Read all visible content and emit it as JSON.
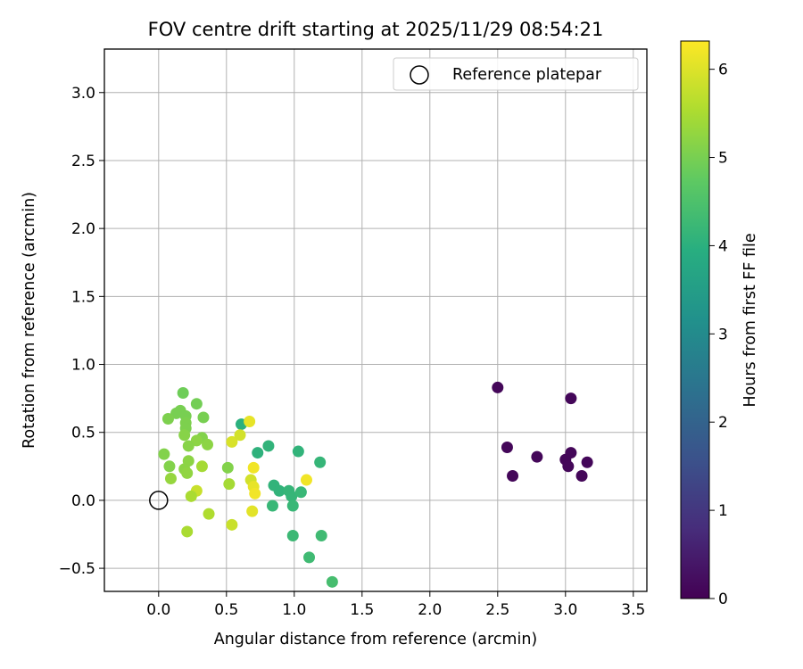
{
  "chart_data": {
    "type": "scatter",
    "title": "FOV centre drift starting at 2025/11/29 08:54:21",
    "xlabel": "Angular distance from reference (arcmin)",
    "ylabel": "Rotation from reference (arcmin)",
    "xlim": [
      -0.4,
      3.6
    ],
    "ylim": [
      -0.67,
      3.32
    ],
    "xticks": [
      0.0,
      0.5,
      1.0,
      1.5,
      2.0,
      2.5,
      3.0,
      3.5
    ],
    "xtick_labels": [
      "0.0",
      "0.5",
      "1.0",
      "1.5",
      "2.0",
      "2.5",
      "3.0",
      "3.5"
    ],
    "yticks": [
      -0.5,
      0.0,
      0.5,
      1.0,
      1.5,
      2.0,
      2.5,
      3.0
    ],
    "ytick_labels": [
      "−0.5",
      "0.0",
      "0.5",
      "1.0",
      "1.5",
      "2.0",
      "2.5",
      "3.0"
    ],
    "grid": true,
    "legend": {
      "position": "top-right",
      "label": "Reference platepar"
    },
    "reference_point": {
      "x": 0.0,
      "y": 0.0
    },
    "colorbar": {
      "label": "Hours from first FF file",
      "range": [
        0,
        6.32
      ],
      "ticks": [
        0,
        1,
        2,
        3,
        4,
        5,
        6
      ],
      "tick_labels": [
        "0",
        "1",
        "2",
        "3",
        "4",
        "5",
        "6"
      ],
      "colormap": "viridis"
    },
    "points": [
      {
        "x": 2.5,
        "y": 0.83,
        "c": 0.1
      },
      {
        "x": 2.57,
        "y": 0.39,
        "c": 0.1
      },
      {
        "x": 2.61,
        "y": 0.18,
        "c": 0.1
      },
      {
        "x": 2.79,
        "y": 0.32,
        "c": 0.1
      },
      {
        "x": 3.0,
        "y": 0.3,
        "c": 0.1
      },
      {
        "x": 3.02,
        "y": 0.25,
        "c": 0.1
      },
      {
        "x": 3.04,
        "y": 0.35,
        "c": 0.1
      },
      {
        "x": 3.04,
        "y": 0.75,
        "c": 0.1
      },
      {
        "x": 3.12,
        "y": 0.18,
        "c": 0.1
      },
      {
        "x": 3.16,
        "y": 0.28,
        "c": 0.1
      },
      {
        "x": 0.61,
        "y": 0.56,
        "c": 4.0
      },
      {
        "x": 0.73,
        "y": 0.35,
        "c": 4.05
      },
      {
        "x": 0.81,
        "y": 0.4,
        "c": 4.1
      },
      {
        "x": 1.03,
        "y": 0.36,
        "c": 4.1
      },
      {
        "x": 1.19,
        "y": 0.28,
        "c": 4.15
      },
      {
        "x": 0.85,
        "y": 0.11,
        "c": 4.1
      },
      {
        "x": 0.89,
        "y": 0.07,
        "c": 4.1
      },
      {
        "x": 0.96,
        "y": 0.07,
        "c": 4.15
      },
      {
        "x": 0.98,
        "y": 0.03,
        "c": 4.15
      },
      {
        "x": 0.99,
        "y": -0.04,
        "c": 4.2
      },
      {
        "x": 0.84,
        "y": -0.04,
        "c": 4.2
      },
      {
        "x": 1.05,
        "y": 0.06,
        "c": 4.2
      },
      {
        "x": 0.99,
        "y": -0.26,
        "c": 4.25
      },
      {
        "x": 1.2,
        "y": -0.26,
        "c": 4.3
      },
      {
        "x": 1.11,
        "y": -0.42,
        "c": 4.3
      },
      {
        "x": 1.28,
        "y": -0.6,
        "c": 4.4
      },
      {
        "x": 0.18,
        "y": 0.79,
        "c": 4.9
      },
      {
        "x": 0.28,
        "y": 0.71,
        "c": 4.95
      },
      {
        "x": 0.16,
        "y": 0.66,
        "c": 5.0
      },
      {
        "x": 0.13,
        "y": 0.64,
        "c": 5.0
      },
      {
        "x": 0.2,
        "y": 0.62,
        "c": 5.0
      },
      {
        "x": 0.07,
        "y": 0.6,
        "c": 5.05
      },
      {
        "x": 0.33,
        "y": 0.61,
        "c": 5.0
      },
      {
        "x": 0.2,
        "y": 0.57,
        "c": 5.05
      },
      {
        "x": 0.2,
        "y": 0.53,
        "c": 5.05
      },
      {
        "x": 0.32,
        "y": 0.46,
        "c": 5.1
      },
      {
        "x": 0.19,
        "y": 0.48,
        "c": 5.15
      },
      {
        "x": 0.28,
        "y": 0.44,
        "c": 5.2
      },
      {
        "x": 0.36,
        "y": 0.41,
        "c": 5.2
      },
      {
        "x": 0.22,
        "y": 0.4,
        "c": 5.15
      },
      {
        "x": 0.04,
        "y": 0.34,
        "c": 5.1
      },
      {
        "x": 0.22,
        "y": 0.29,
        "c": 5.2
      },
      {
        "x": 0.08,
        "y": 0.25,
        "c": 5.1
      },
      {
        "x": 0.19,
        "y": 0.23,
        "c": 5.2
      },
      {
        "x": 0.21,
        "y": 0.2,
        "c": 5.25
      },
      {
        "x": 0.09,
        "y": 0.16,
        "c": 5.3
      },
      {
        "x": 0.32,
        "y": 0.25,
        "c": 5.45
      },
      {
        "x": 0.51,
        "y": 0.24,
        "c": 5.1
      },
      {
        "x": 0.52,
        "y": 0.12,
        "c": 5.45
      },
      {
        "x": 0.28,
        "y": 0.07,
        "c": 5.8
      },
      {
        "x": 0.24,
        "y": 0.03,
        "c": 5.5
      },
      {
        "x": 0.37,
        "y": -0.1,
        "c": 5.55
      },
      {
        "x": 0.21,
        "y": -0.23,
        "c": 5.5
      },
      {
        "x": 0.54,
        "y": -0.18,
        "c": 5.8
      },
      {
        "x": 0.54,
        "y": 0.43,
        "c": 5.95
      },
      {
        "x": 0.6,
        "y": 0.48,
        "c": 5.9
      },
      {
        "x": 0.67,
        "y": 0.58,
        "c": 6.1
      },
      {
        "x": 0.68,
        "y": 0.15,
        "c": 5.9
      },
      {
        "x": 0.7,
        "y": 0.24,
        "c": 6.2
      },
      {
        "x": 0.7,
        "y": 0.1,
        "c": 6.1
      },
      {
        "x": 0.71,
        "y": 0.05,
        "c": 6.2
      },
      {
        "x": 0.69,
        "y": -0.08,
        "c": 6.05
      },
      {
        "x": 1.09,
        "y": 0.15,
        "c": 6.2
      }
    ]
  }
}
